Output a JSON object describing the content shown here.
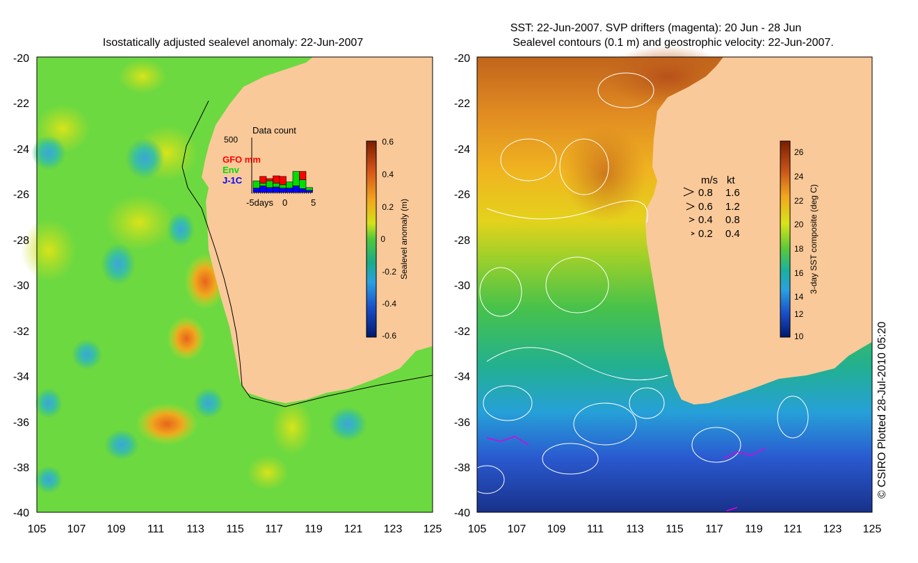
{
  "left_map": {
    "title": "Isostatically adjusted sealevel anomaly: 22-Jun-2007",
    "lat_ticks": [
      "-20",
      "-22",
      "-24",
      "-26",
      "-28",
      "-30",
      "-32",
      "-34",
      "-36",
      "-38",
      "-40"
    ],
    "lon_ticks": [
      "105",
      "107",
      "109",
      "111",
      "113",
      "115",
      "117",
      "119",
      "121",
      "123",
      "125"
    ],
    "colorbar": {
      "label": "Sealevel anomaly (m)",
      "ticks": [
        "0.6",
        "0.4",
        "0.2",
        "0",
        "-0.2",
        "-0.4",
        "-0.6"
      ]
    },
    "inset": {
      "title": "Data count",
      "max_label": "500",
      "legend": [
        {
          "label": "GFO mm",
          "color": "#ff0000"
        },
        {
          "label": "Env",
          "color": "#00dd00"
        },
        {
          "label": "J-1C",
          "color": "#0000ff"
        }
      ],
      "x_labels": [
        "-5days",
        "0",
        "5"
      ],
      "bars": [
        {
          "blue": 0.08,
          "green": 0.13,
          "red": 0.0
        },
        {
          "blue": 0.12,
          "green": 0.05,
          "red": 0.12
        },
        {
          "blue": 0.09,
          "green": 0.12,
          "red": 0.04
        },
        {
          "blue": 0.1,
          "green": 0.07,
          "red": 0.13
        },
        {
          "blue": 0.08,
          "green": 0.06,
          "red": 0.15
        },
        {
          "blue": 0.08,
          "green": 0.11,
          "red": 0.0
        },
        {
          "blue": 0.12,
          "green": 0.26,
          "red": 0.0
        },
        {
          "blue": 0.07,
          "green": 0.16,
          "red": 0.15
        },
        {
          "blue": 0.04,
          "green": 0.05,
          "red": 0.0
        }
      ]
    }
  },
  "right_map": {
    "title_line1": "SST: 22-Jun-2007. SVP drifters (magenta): 20 Jun - 28 Jun",
    "title_line2": "Sealevel contours (0.1 m) and geostrophic velocity: 22-Jun-2007.",
    "lat_ticks": [
      "-20",
      "-22",
      "-24",
      "-26",
      "-28",
      "-30",
      "-32",
      "-34",
      "-36",
      "-38",
      "-40"
    ],
    "lon_ticks": [
      "105",
      "107",
      "109",
      "111",
      "113",
      "115",
      "117",
      "119",
      "121",
      "123",
      "125"
    ],
    "colorbar": {
      "label": "3-day SST composite (deg C)",
      "ticks": [
        "26",
        "24",
        "22",
        "20",
        "18",
        "16",
        "14",
        "12",
        "10"
      ]
    },
    "velocity_key": {
      "header_ms": "m/s",
      "header_kt": "kt",
      "rows": [
        {
          "ms": "0.8",
          "kt": "1.6"
        },
        {
          "ms": "0.6",
          "kt": "1.2"
        },
        {
          "ms": "0.4",
          "kt": "0.8"
        },
        {
          "ms": "0.2",
          "kt": "0.4"
        }
      ]
    }
  },
  "credit": "© CSIRO Plotted 28-Jul-2010 05:20",
  "colors": {
    "land": "#f9c999",
    "sla_background": "#6cd940",
    "sst_warm": "#c8641a",
    "sst_cold": "#1a3aa0"
  }
}
